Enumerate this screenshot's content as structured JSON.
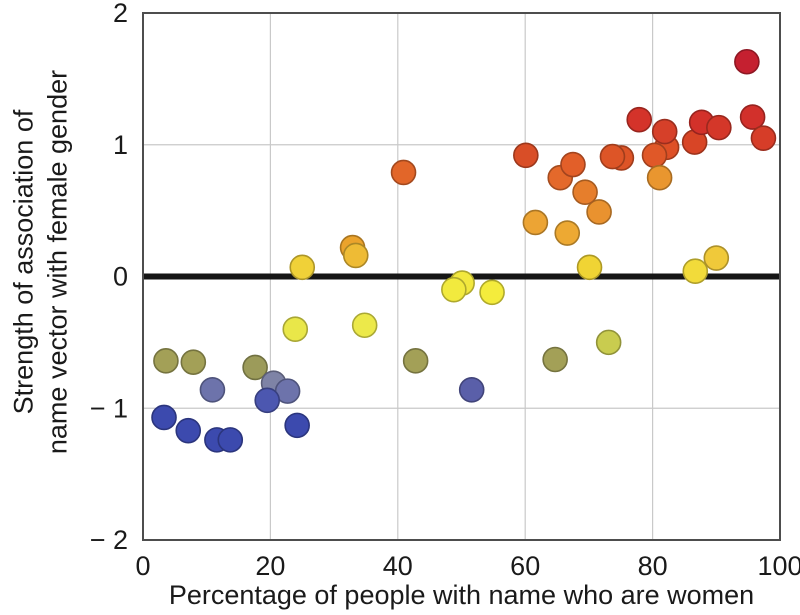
{
  "chart_data": {
    "type": "scatter",
    "title": "",
    "xlabel": "Percentage of people with name who are women",
    "ylabel_lines": [
      "Strength of association of",
      "name vector with female gender"
    ],
    "xlim": [
      0,
      100
    ],
    "ylim": [
      -2,
      2
    ],
    "xticks": [
      {
        "value": 0,
        "label": "0"
      },
      {
        "value": 20,
        "label": "20"
      },
      {
        "value": 40,
        "label": "40"
      },
      {
        "value": 60,
        "label": "60"
      },
      {
        "value": 80,
        "label": "80"
      },
      {
        "value": 100,
        "label": "100"
      }
    ],
    "yticks": [
      {
        "value": 2,
        "label": "2"
      },
      {
        "value": 1,
        "label": "1"
      },
      {
        "value": 0,
        "label": "0"
      },
      {
        "value": -1,
        "label": "− 1"
      },
      {
        "value": -2,
        "label": "− 2"
      }
    ],
    "grid": {
      "on": true,
      "x_values": [
        20,
        40,
        60,
        80
      ],
      "y_values": [
        1,
        -1
      ],
      "color": "#c9c9c9"
    },
    "zero_line": {
      "y": 0,
      "color": "#161616",
      "width": 6
    },
    "frame_color": "#4d4d4d",
    "background": "#ffffff",
    "point_radius": 12,
    "points": [
      {
        "x": 3.6,
        "y": -0.64,
        "color": "#a3a057"
      },
      {
        "x": 7.9,
        "y": -0.65,
        "color": "#a3a057"
      },
      {
        "x": 17.6,
        "y": -0.69,
        "color": "#9c9b5a"
      },
      {
        "x": 42.8,
        "y": -0.64,
        "color": "#a3a057"
      },
      {
        "x": 64.7,
        "y": -0.63,
        "color": "#a3a057"
      },
      {
        "x": 73.1,
        "y": -0.5,
        "color": "#c9cc4f"
      },
      {
        "x": 10.9,
        "y": -0.86,
        "color": "#6d73ab"
      },
      {
        "x": 20.5,
        "y": -0.81,
        "color": "#7e83a6"
      },
      {
        "x": 22.7,
        "y": -0.87,
        "color": "#6d73ab"
      },
      {
        "x": 19.5,
        "y": -0.94,
        "color": "#4c57b0"
      },
      {
        "x": 51.6,
        "y": -0.86,
        "color": "#5a5fa9"
      },
      {
        "x": 3.3,
        "y": -1.07,
        "color": "#3c4aae"
      },
      {
        "x": 7.1,
        "y": -1.17,
        "color": "#3c4aae"
      },
      {
        "x": 11.6,
        "y": -1.24,
        "color": "#3c4aae"
      },
      {
        "x": 13.7,
        "y": -1.24,
        "color": "#3c4aae"
      },
      {
        "x": 24.2,
        "y": -1.13,
        "color": "#3c4aae"
      },
      {
        "x": 23.9,
        "y": -0.4,
        "color": "#e9e749"
      },
      {
        "x": 34.8,
        "y": -0.37,
        "color": "#ece94a"
      },
      {
        "x": 50.1,
        "y": -0.05,
        "color": "#f2e83e"
      },
      {
        "x": 48.8,
        "y": -0.1,
        "color": "#f2ea3e"
      },
      {
        "x": 54.8,
        "y": -0.12,
        "color": "#f4ec3c"
      },
      {
        "x": 25.0,
        "y": 0.07,
        "color": "#f0d138"
      },
      {
        "x": 70.1,
        "y": 0.07,
        "color": "#f0d434"
      },
      {
        "x": 86.7,
        "y": 0.04,
        "color": "#f2db3a"
      },
      {
        "x": 90.0,
        "y": 0.14,
        "color": "#f0c93a"
      },
      {
        "x": 32.9,
        "y": 0.22,
        "color": "#eba32c"
      },
      {
        "x": 33.4,
        "y": 0.16,
        "color": "#eebb35"
      },
      {
        "x": 61.6,
        "y": 0.41,
        "color": "#eca434"
      },
      {
        "x": 66.6,
        "y": 0.33,
        "color": "#eda933"
      },
      {
        "x": 71.6,
        "y": 0.49,
        "color": "#e9922f"
      },
      {
        "x": 69.4,
        "y": 0.64,
        "color": "#e67e2c"
      },
      {
        "x": 65.5,
        "y": 0.75,
        "color": "#e4692b"
      },
      {
        "x": 67.5,
        "y": 0.85,
        "color": "#e25f29"
      },
      {
        "x": 40.9,
        "y": 0.79,
        "color": "#e26629"
      },
      {
        "x": 75.1,
        "y": 0.9,
        "color": "#dd5427"
      },
      {
        "x": 73.7,
        "y": 0.91,
        "color": "#dd5527"
      },
      {
        "x": 60.1,
        "y": 0.92,
        "color": "#d94e27"
      },
      {
        "x": 82.2,
        "y": 0.98,
        "color": "#de5026"
      },
      {
        "x": 80.3,
        "y": 0.92,
        "color": "#e05828"
      },
      {
        "x": 81.9,
        "y": 1.1,
        "color": "#d64029"
      },
      {
        "x": 81.1,
        "y": 0.75,
        "color": "#e9962f"
      },
      {
        "x": 86.6,
        "y": 1.02,
        "color": "#d84526"
      },
      {
        "x": 87.7,
        "y": 1.17,
        "color": "#d3312a"
      },
      {
        "x": 90.4,
        "y": 1.13,
        "color": "#d43729"
      },
      {
        "x": 77.9,
        "y": 1.19,
        "color": "#d4332a"
      },
      {
        "x": 95.7,
        "y": 1.21,
        "color": "#d2302b"
      },
      {
        "x": 97.4,
        "y": 1.05,
        "color": "#d63d28"
      },
      {
        "x": 94.8,
        "y": 1.63,
        "color": "#c52030"
      }
    ]
  }
}
